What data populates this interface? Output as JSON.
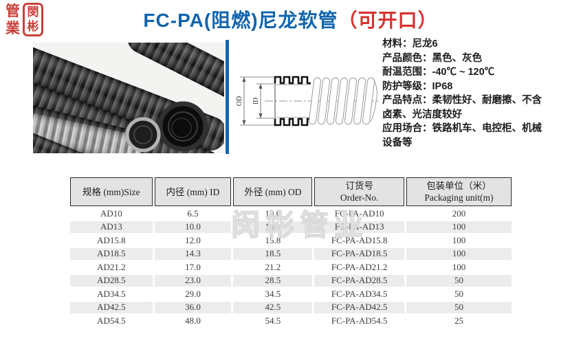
{
  "logo": {
    "left_top_char": "管",
    "left_bottom_char": "業",
    "right_top_char": "閔",
    "right_bottom_char": "彬",
    "seal_color": "#c8403a"
  },
  "header": {
    "title_main": "FC-PA(阻燃)尼龙软管",
    "title_paren": "（可开口）",
    "title_color": "#1064ae",
    "paren_color": "#d4332e",
    "accent_bar_color": "#1565b2"
  },
  "diagram": {
    "od_label": "OD",
    "id_label": "ID"
  },
  "specs": {
    "lines": [
      "材料：尼龙6",
      "产品颜色：黑色、灰色",
      "耐温范围：-40℃ ~ 120℃",
      "防护等级：IP68",
      "产品特点：柔韧性好、耐磨擦、不含",
      "卤素、光洁度较好",
      "应用场合：铁路机车、电控柜、机械",
      "设备等"
    ]
  },
  "watermark": {
    "text": "闵彬管业"
  },
  "table": {
    "headers": [
      {
        "line1": "规格 (mm)Size",
        "line2": ""
      },
      {
        "line1": "内径 (mm) ID",
        "line2": ""
      },
      {
        "line1": "外径 (mm) OD",
        "line2": ""
      },
      {
        "line1": "订货号",
        "line2": "Order-No."
      },
      {
        "line1": "包装单位（米）",
        "line2": "Packaging unit(m)"
      }
    ],
    "rows": [
      [
        "AD10",
        "6.5",
        "10.0",
        "FC-PA-AD10",
        "200"
      ],
      [
        "AD13",
        "10.0",
        "13.0",
        "FC-PA-AD13",
        "100"
      ],
      [
        "AD15.8",
        "12.0",
        "15.8",
        "FC-PA-AD15.8",
        "100"
      ],
      [
        "AD18.5",
        "14.3",
        "18.5",
        "FC-PA-AD18.5",
        "100"
      ],
      [
        "AD21.2",
        "17.0",
        "21.2",
        "FC-PA-AD21.2",
        "100"
      ],
      [
        "AD28.5",
        "23.0",
        "28.5",
        "FC-PA-AD28.5",
        "50"
      ],
      [
        "AD34.5",
        "29.0",
        "34.5",
        "FC-PA-AD34.5",
        "50"
      ],
      [
        "AD42.5",
        "36.0",
        "42.5",
        "FC-PA-AD42.5",
        "50"
      ],
      [
        "AD54.5",
        "48.0",
        "54.5",
        "FC-PA-AD54.5",
        "25"
      ]
    ]
  }
}
